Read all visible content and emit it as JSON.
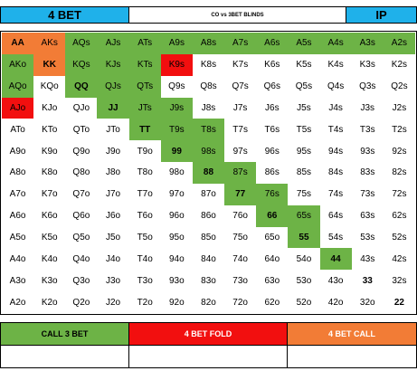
{
  "header": {
    "title": "4 BET",
    "subtitle": "CO vs 3BET BLINDS",
    "position": "IP"
  },
  "colors": {
    "header_blue": "#1fb1ea",
    "call_green": "#6db346",
    "fold_red": "#f20f0f",
    "call4_orange": "#f27c36"
  },
  "grid": {
    "rows": [
      [
        [
          "AA",
          "o",
          1
        ],
        [
          "AKs",
          "o",
          0
        ],
        [
          "AQs",
          "c",
          0
        ],
        [
          "AJs",
          "c",
          0
        ],
        [
          "ATs",
          "c",
          0
        ],
        [
          "A9s",
          "c",
          0
        ],
        [
          "A8s",
          "c",
          0
        ],
        [
          "A7s",
          "c",
          0
        ],
        [
          "A6s",
          "c",
          0
        ],
        [
          "A5s",
          "c",
          0
        ],
        [
          "A4s",
          "c",
          0
        ],
        [
          "A3s",
          "c",
          0
        ],
        [
          "A2s",
          "c",
          0
        ]
      ],
      [
        [
          "AKo",
          "c",
          0
        ],
        [
          "KK",
          "o",
          1
        ],
        [
          "KQs",
          "c",
          0
        ],
        [
          "KJs",
          "c",
          0
        ],
        [
          "KTs",
          "c",
          0
        ],
        [
          "K9s",
          "r",
          0
        ],
        [
          "K8s",
          "",
          0
        ],
        [
          "K7s",
          "",
          0
        ],
        [
          "K6s",
          "",
          0
        ],
        [
          "K5s",
          "",
          0
        ],
        [
          "K4s",
          "",
          0
        ],
        [
          "K3s",
          "",
          0
        ],
        [
          "K2s",
          "",
          0
        ]
      ],
      [
        [
          "AQo",
          "c",
          0
        ],
        [
          "KQo",
          "",
          0
        ],
        [
          "QQ",
          "c",
          1
        ],
        [
          "QJs",
          "c",
          0
        ],
        [
          "QTs",
          "c",
          0
        ],
        [
          "Q9s",
          "",
          0
        ],
        [
          "Q8s",
          "",
          0
        ],
        [
          "Q7s",
          "",
          0
        ],
        [
          "Q6s",
          "",
          0
        ],
        [
          "Q5s",
          "",
          0
        ],
        [
          "Q4s",
          "",
          0
        ],
        [
          "Q3s",
          "",
          0
        ],
        [
          "Q2s",
          "",
          0
        ]
      ],
      [
        [
          "AJo",
          "r",
          0
        ],
        [
          "KJo",
          "",
          0
        ],
        [
          "QJo",
          "",
          0
        ],
        [
          "JJ",
          "c",
          1
        ],
        [
          "JTs",
          "c",
          0
        ],
        [
          "J9s",
          "c",
          0
        ],
        [
          "J8s",
          "",
          0
        ],
        [
          "J7s",
          "",
          0
        ],
        [
          "J6s",
          "",
          0
        ],
        [
          "J5s",
          "",
          0
        ],
        [
          "J4s",
          "",
          0
        ],
        [
          "J3s",
          "",
          0
        ],
        [
          "J2s",
          "",
          0
        ]
      ],
      [
        [
          "ATo",
          "",
          0
        ],
        [
          "KTo",
          "",
          0
        ],
        [
          "QTo",
          "",
          0
        ],
        [
          "JTo",
          "",
          0
        ],
        [
          "TT",
          "c",
          1
        ],
        [
          "T9s",
          "c",
          0
        ],
        [
          "T8s",
          "c",
          0
        ],
        [
          "T7s",
          "",
          0
        ],
        [
          "T6s",
          "",
          0
        ],
        [
          "T5s",
          "",
          0
        ],
        [
          "T4s",
          "",
          0
        ],
        [
          "T3s",
          "",
          0
        ],
        [
          "T2s",
          "",
          0
        ]
      ],
      [
        [
          "A9o",
          "",
          0
        ],
        [
          "K9o",
          "",
          0
        ],
        [
          "Q9o",
          "",
          0
        ],
        [
          "J9o",
          "",
          0
        ],
        [
          "T9o",
          "",
          0
        ],
        [
          "99",
          "c",
          1
        ],
        [
          "98s",
          "c",
          0
        ],
        [
          "97s",
          "",
          0
        ],
        [
          "96s",
          "",
          0
        ],
        [
          "95s",
          "",
          0
        ],
        [
          "94s",
          "",
          0
        ],
        [
          "93s",
          "",
          0
        ],
        [
          "92s",
          "",
          0
        ]
      ],
      [
        [
          "A8o",
          "",
          0
        ],
        [
          "K8o",
          "",
          0
        ],
        [
          "Q8o",
          "",
          0
        ],
        [
          "J8o",
          "",
          0
        ],
        [
          "T8o",
          "",
          0
        ],
        [
          "98o",
          "",
          0
        ],
        [
          "88",
          "c",
          1
        ],
        [
          "87s",
          "c",
          0
        ],
        [
          "86s",
          "",
          0
        ],
        [
          "85s",
          "",
          0
        ],
        [
          "84s",
          "",
          0
        ],
        [
          "83s",
          "",
          0
        ],
        [
          "82s",
          "",
          0
        ]
      ],
      [
        [
          "A7o",
          "",
          0
        ],
        [
          "K7o",
          "",
          0
        ],
        [
          "Q7o",
          "",
          0
        ],
        [
          "J7o",
          "",
          0
        ],
        [
          "T7o",
          "",
          0
        ],
        [
          "97o",
          "",
          0
        ],
        [
          "87o",
          "",
          0
        ],
        [
          "77",
          "c",
          1
        ],
        [
          "76s",
          "c",
          0
        ],
        [
          "75s",
          "",
          0
        ],
        [
          "74s",
          "",
          0
        ],
        [
          "73s",
          "",
          0
        ],
        [
          "72s",
          "",
          0
        ]
      ],
      [
        [
          "A6o",
          "",
          0
        ],
        [
          "K6o",
          "",
          0
        ],
        [
          "Q6o",
          "",
          0
        ],
        [
          "J6o",
          "",
          0
        ],
        [
          "T6o",
          "",
          0
        ],
        [
          "96o",
          "",
          0
        ],
        [
          "86o",
          "",
          0
        ],
        [
          "76o",
          "",
          0
        ],
        [
          "66",
          "c",
          1
        ],
        [
          "65s",
          "c",
          0
        ],
        [
          "64s",
          "",
          0
        ],
        [
          "63s",
          "",
          0
        ],
        [
          "62s",
          "",
          0
        ]
      ],
      [
        [
          "A5o",
          "",
          0
        ],
        [
          "K5o",
          "",
          0
        ],
        [
          "Q5o",
          "",
          0
        ],
        [
          "J5o",
          "",
          0
        ],
        [
          "T5o",
          "",
          0
        ],
        [
          "95o",
          "",
          0
        ],
        [
          "85o",
          "",
          0
        ],
        [
          "75o",
          "",
          0
        ],
        [
          "65o",
          "",
          0
        ],
        [
          "55",
          "c",
          1
        ],
        [
          "54s",
          "",
          0
        ],
        [
          "53s",
          "",
          0
        ],
        [
          "52s",
          "",
          0
        ]
      ],
      [
        [
          "A4o",
          "",
          0
        ],
        [
          "K4o",
          "",
          0
        ],
        [
          "Q4o",
          "",
          0
        ],
        [
          "J4o",
          "",
          0
        ],
        [
          "T4o",
          "",
          0
        ],
        [
          "94o",
          "",
          0
        ],
        [
          "84o",
          "",
          0
        ],
        [
          "74o",
          "",
          0
        ],
        [
          "64o",
          "",
          0
        ],
        [
          "54o",
          "",
          0
        ],
        [
          "44",
          "c",
          1
        ],
        [
          "43s",
          "",
          0
        ],
        [
          "42s",
          "",
          0
        ]
      ],
      [
        [
          "A3o",
          "",
          0
        ],
        [
          "K3o",
          "",
          0
        ],
        [
          "Q3o",
          "",
          0
        ],
        [
          "J3o",
          "",
          0
        ],
        [
          "T3o",
          "",
          0
        ],
        [
          "93o",
          "",
          0
        ],
        [
          "83o",
          "",
          0
        ],
        [
          "73o",
          "",
          0
        ],
        [
          "63o",
          "",
          0
        ],
        [
          "53o",
          "",
          0
        ],
        [
          "43o",
          "",
          0
        ],
        [
          "33",
          "",
          1
        ],
        [
          "32s",
          "",
          0
        ]
      ],
      [
        [
          "A2o",
          "",
          0
        ],
        [
          "K2o",
          "",
          0
        ],
        [
          "Q2o",
          "",
          0
        ],
        [
          "J2o",
          "",
          0
        ],
        [
          "T2o",
          "",
          0
        ],
        [
          "92o",
          "",
          0
        ],
        [
          "82o",
          "",
          0
        ],
        [
          "72o",
          "",
          0
        ],
        [
          "62o",
          "",
          0
        ],
        [
          "52o",
          "",
          0
        ],
        [
          "42o",
          "",
          0
        ],
        [
          "32o",
          "",
          0
        ],
        [
          "22",
          "",
          1
        ]
      ]
    ]
  },
  "legend": {
    "call_3bet": "CALL 3 BET",
    "four_bet_fold": "4 BET FOLD",
    "four_bet_call": "4 BET CALL"
  }
}
